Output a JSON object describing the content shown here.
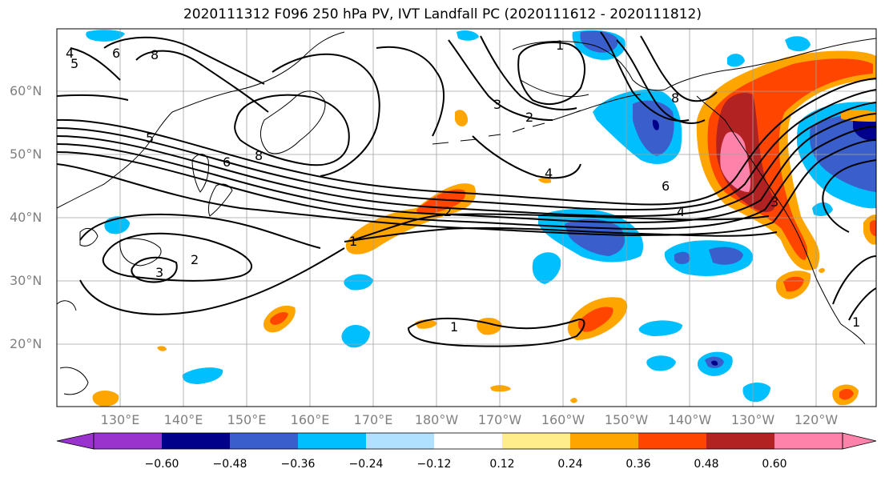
{
  "title": "2020111312 F096 250 hPa PV, IVT Landfall PC (2020111612 - 2020111812)",
  "lat_labels": [
    "60°N",
    "50°N",
    "40°N",
    "30°N",
    "20°N"
  ],
  "lon_labels": [
    "130°E",
    "140°E",
    "150°E",
    "160°E",
    "170°E",
    "180°W",
    "170°W",
    "160°W",
    "150°W",
    "140°W",
    "130°W",
    "120°W"
  ],
  "contour_labels": [
    "1",
    "1",
    "1",
    "1",
    "2",
    "2",
    "2",
    "3",
    "3",
    "3",
    "4",
    "4",
    "4",
    "5",
    "5",
    "6",
    "6",
    "6",
    "8",
    "8",
    "8"
  ],
  "colorbar": {
    "ticks": [
      "−0.60",
      "−0.48",
      "−0.36",
      "−0.24",
      "−0.12",
      "0.12",
      "0.24",
      "0.36",
      "0.48",
      "0.60"
    ],
    "colors": [
      "#9a32cd",
      "#00008b",
      "#3a5fcd",
      "#00bfff",
      "#b0e2ff",
      "#ffffff",
      "#ffec8b",
      "#ffa500",
      "#ff4500",
      "#b22222",
      "#ff82ab"
    ]
  },
  "palette": {
    "pos_1": "#ffec8b",
    "pos_2": "#ffa500",
    "pos_3": "#ff4500",
    "pos_4": "#b22222",
    "pos_5": "#ff82ab",
    "neg_1": "#b0e2ff",
    "neg_2": "#00bfff",
    "neg_3": "#3a5fcd",
    "neg_4": "#00008b",
    "neg_5": "#9a32cd"
  }
}
